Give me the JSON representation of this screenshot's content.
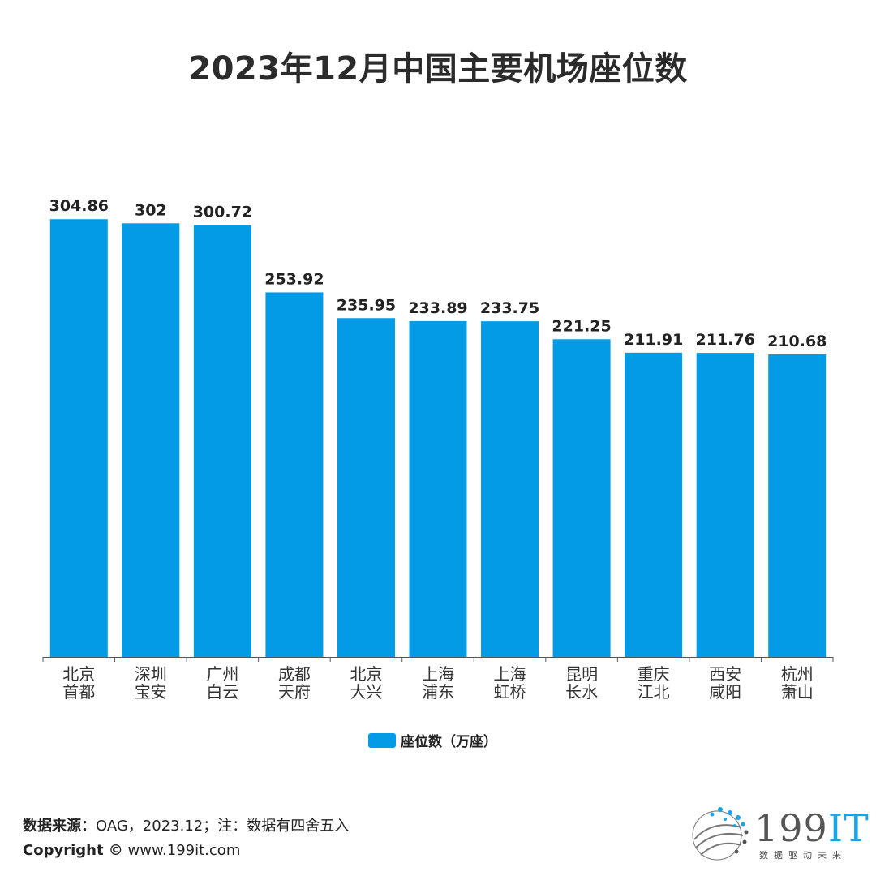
{
  "title": "2023年12月中国主要机场座位数",
  "colors": {
    "bar": "#039be5",
    "axis": "#555555",
    "title": "#2b2b2b"
  },
  "legend": {
    "label": "座位数（万座）"
  },
  "footer": {
    "source_label": "数据来源：",
    "source_text": "OAG，2023.12；注：数据有四舍五入",
    "copyright_label": "Copyright ©",
    "copyright_text": " www.199it.com"
  },
  "logo": {
    "num": "199",
    "it": "IT",
    "tagline": "数据驱动未来"
  },
  "chart_data": {
    "type": "bar",
    "title": "2023年12月中国主要机场座位数",
    "categories": [
      [
        "北京",
        "首都"
      ],
      [
        "深圳",
        "宝安"
      ],
      [
        "广州",
        "白云"
      ],
      [
        "成都",
        "天府"
      ],
      [
        "北京",
        "大兴"
      ],
      [
        "上海",
        "浦东"
      ],
      [
        "上海",
        "虹桥"
      ],
      [
        "昆明",
        "长水"
      ],
      [
        "重庆",
        "江北"
      ],
      [
        "西安",
        "咸阳"
      ],
      [
        "杭州",
        "萧山"
      ]
    ],
    "series": [
      {
        "name": "座位数（万座）",
        "values": [
          304.86,
          302,
          300.72,
          253.92,
          235.95,
          233.89,
          233.75,
          221.25,
          211.91,
          211.76,
          210.68
        ],
        "labels": [
          "304.86",
          "302",
          "300.72",
          "253.92",
          "235.95",
          "233.89",
          "233.75",
          "221.25",
          "211.91",
          "211.76",
          "210.68"
        ]
      }
    ],
    "ylim": [
      0,
      305
    ],
    "grid": false,
    "legend": "bottom-center"
  }
}
